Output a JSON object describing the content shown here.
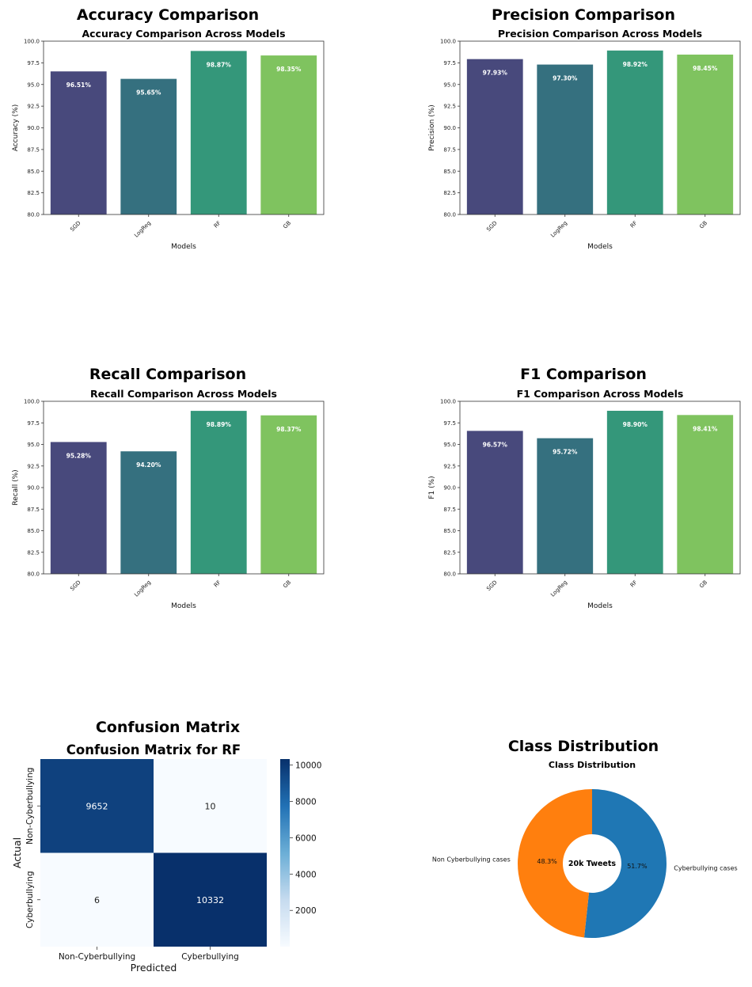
{
  "panels": [
    {
      "title": "Accuracy Comparison"
    },
    {
      "title": "Precision Comparison"
    },
    {
      "title": "Recall Comparison"
    },
    {
      "title": "F1 Comparison"
    },
    {
      "title": "Confusion Matrix"
    },
    {
      "title": "Class Distribution"
    }
  ],
  "chart_data": [
    {
      "type": "bar",
      "title": "Accuracy Comparison Across Models",
      "xlabel": "Models",
      "ylabel": "Accuracy (%)",
      "categories": [
        "SGD",
        "LogReg",
        "RF",
        "GB"
      ],
      "values": [
        96.51,
        95.65,
        98.87,
        98.35
      ],
      "value_labels": [
        "96.51%",
        "95.65%",
        "98.87%",
        "98.35%"
      ],
      "ylim": [
        80,
        100
      ],
      "yticks": [
        "80.0",
        "82.5",
        "85.0",
        "87.5",
        "90.0",
        "92.5",
        "95.0",
        "97.5",
        "100.0"
      ],
      "colors": [
        "#48497c",
        "#35707f",
        "#34977a",
        "#7fc35f"
      ]
    },
    {
      "type": "bar",
      "title": "Precision Comparison Across Models",
      "xlabel": "Models",
      "ylabel": "Precision (%)",
      "categories": [
        "SGD",
        "LogReg",
        "RF",
        "GB"
      ],
      "values": [
        97.93,
        97.3,
        98.92,
        98.45
      ],
      "value_labels": [
        "97.93%",
        "97.30%",
        "98.92%",
        "98.45%"
      ],
      "ylim": [
        80,
        100
      ],
      "yticks": [
        "80.0",
        "82.5",
        "85.0",
        "87.5",
        "90.0",
        "92.5",
        "95.0",
        "97.5",
        "100.0"
      ],
      "colors": [
        "#48497c",
        "#35707f",
        "#34977a",
        "#7fc35f"
      ]
    },
    {
      "type": "bar",
      "title": "Recall Comparison Across Models",
      "xlabel": "Models",
      "ylabel": "Recall (%)",
      "categories": [
        "SGD",
        "LogReg",
        "RF",
        "GB"
      ],
      "values": [
        95.28,
        94.2,
        98.89,
        98.37
      ],
      "value_labels": [
        "95.28%",
        "94.20%",
        "98.89%",
        "98.37%"
      ],
      "ylim": [
        80,
        100
      ],
      "yticks": [
        "80.0",
        "82.5",
        "85.0",
        "87.5",
        "90.0",
        "92.5",
        "95.0",
        "97.5",
        "100.0"
      ],
      "colors": [
        "#48497c",
        "#35707f",
        "#34977a",
        "#7fc35f"
      ]
    },
    {
      "type": "bar",
      "title": "F1 Comparison Across Models",
      "xlabel": "Models",
      "ylabel": "F1 (%)",
      "categories": [
        "SGD",
        "LogReg",
        "RF",
        "GB"
      ],
      "values": [
        96.57,
        95.72,
        98.9,
        98.41
      ],
      "value_labels": [
        "96.57%",
        "95.72%",
        "98.90%",
        "98.41%"
      ],
      "ylim": [
        80,
        100
      ],
      "yticks": [
        "80.0",
        "82.5",
        "85.0",
        "87.5",
        "90.0",
        "92.5",
        "95.0",
        "97.5",
        "100.0"
      ],
      "colors": [
        "#48497c",
        "#35707f",
        "#34977a",
        "#7fc35f"
      ]
    },
    {
      "type": "heatmap",
      "title": "Confusion Matrix for RF",
      "xlabel": "Predicted",
      "ylabel": "Actual",
      "x_categories": [
        "Non-Cyberbullying",
        "Cyberbullying"
      ],
      "y_categories": [
        "Non-Cyberbullying",
        "Cyberbullying"
      ],
      "matrix": [
        [
          9652,
          10
        ],
        [
          6,
          10332
        ]
      ],
      "colorbar_range": [
        6,
        10332
      ],
      "colorbar_ticks": [
        "2000",
        "4000",
        "6000",
        "8000",
        "10000"
      ],
      "colormap": "Blues"
    },
    {
      "type": "pie",
      "title": "Class Distribution",
      "labels": [
        "Cyberbullying cases",
        "Non Cyberbullying cases"
      ],
      "values": [
        51.7,
        48.3
      ],
      "pct_labels": [
        "51.7%",
        "48.3%"
      ],
      "colors": [
        "#1f77b4",
        "#ff7f0e"
      ],
      "center_label": "20k Tweets",
      "donut": true
    }
  ]
}
